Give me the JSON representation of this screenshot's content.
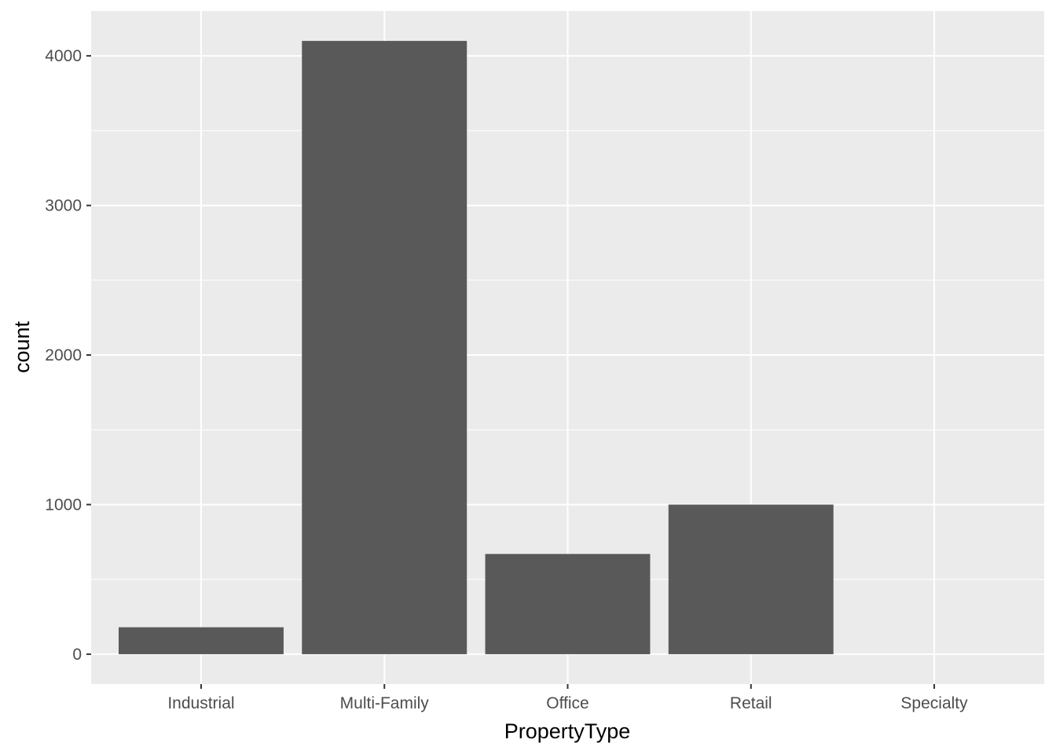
{
  "chart_data": {
    "type": "bar",
    "title": "",
    "xlabel": "PropertyType",
    "ylabel": "count",
    "categories": [
      "Industrial",
      "Multi-Family",
      "Office",
      "Retail",
      "Specialty"
    ],
    "values": [
      180,
      4100,
      670,
      1000,
      0
    ],
    "ylim": [
      -200,
      4300
    ],
    "yticks": [
      0,
      1000,
      2000,
      3000,
      4000
    ],
    "ytick_labels": [
      "0",
      "1000",
      "2000",
      "3000",
      "4000"
    ],
    "grid": true,
    "legend": "none",
    "colors": {
      "bar": "#595959",
      "panel": "#ebebeb",
      "grid": "#ffffff"
    }
  }
}
